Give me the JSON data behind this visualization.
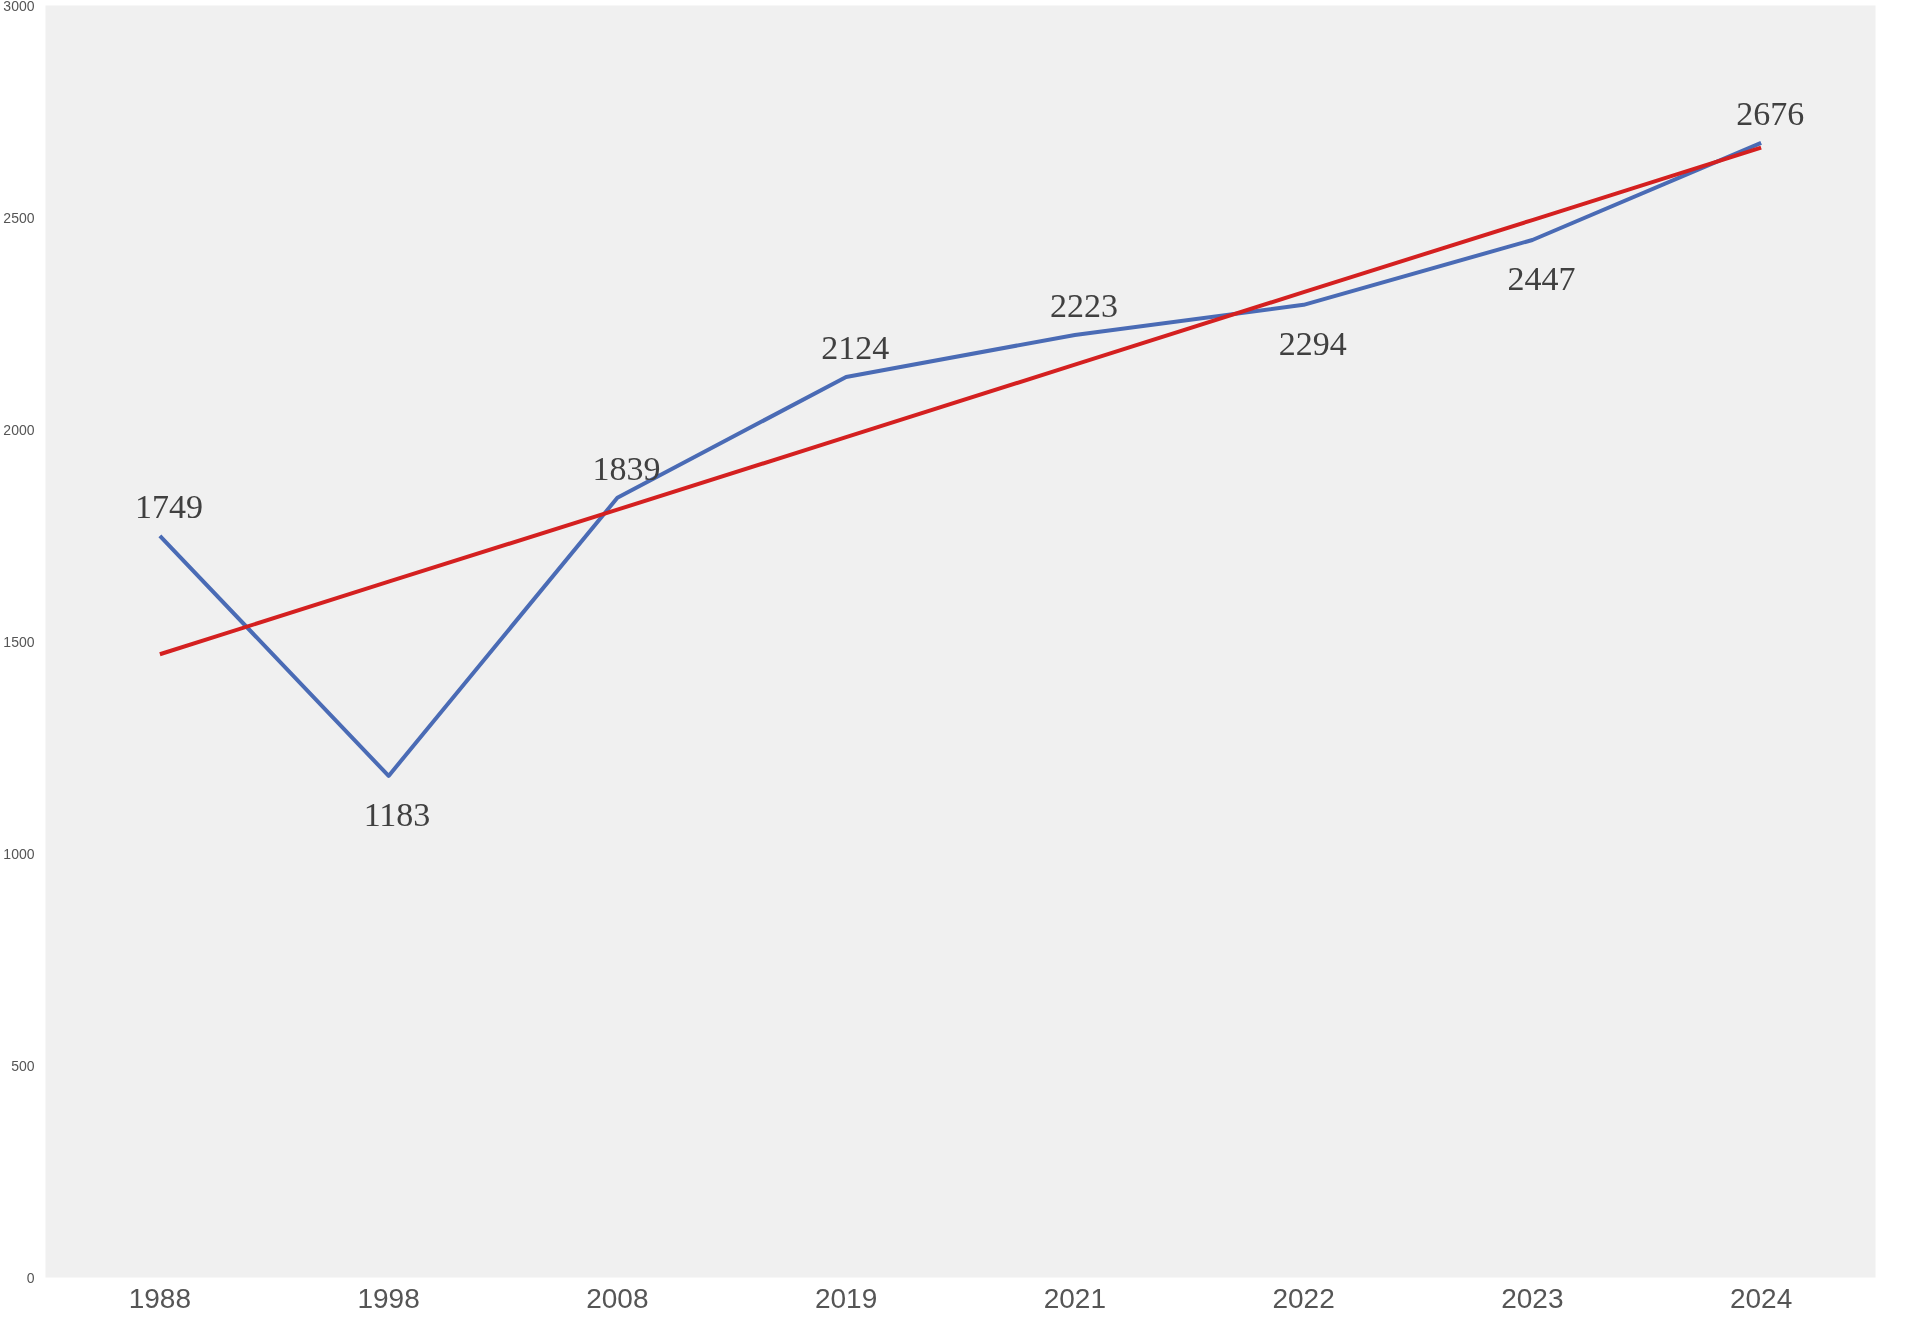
{
  "chart_data": {
    "type": "line",
    "categories": [
      "1988",
      "1998",
      "2008",
      "2019",
      "2021",
      "2022",
      "2023",
      "2024"
    ],
    "series": [
      {
        "color": "#4a6bb5",
        "values": [
          1749,
          1183,
          1839,
          2124,
          2223,
          2294,
          2447,
          2676
        ],
        "value_labels": [
          "1749",
          "1183",
          "1839",
          "2124",
          "2223",
          "2294",
          "2447",
          "2676"
        ]
      },
      {
        "color": "#d42020",
        "values": [
          1470,
          1641,
          1811,
          1982,
          2153,
          2324,
          2494,
          2665
        ]
      }
    ],
    "ylim": [
      0,
      3000
    ],
    "yticks": [
      0,
      500,
      1000,
      1500,
      2000,
      2500,
      3000
    ],
    "marker": "none",
    "line_style": "solid"
  }
}
